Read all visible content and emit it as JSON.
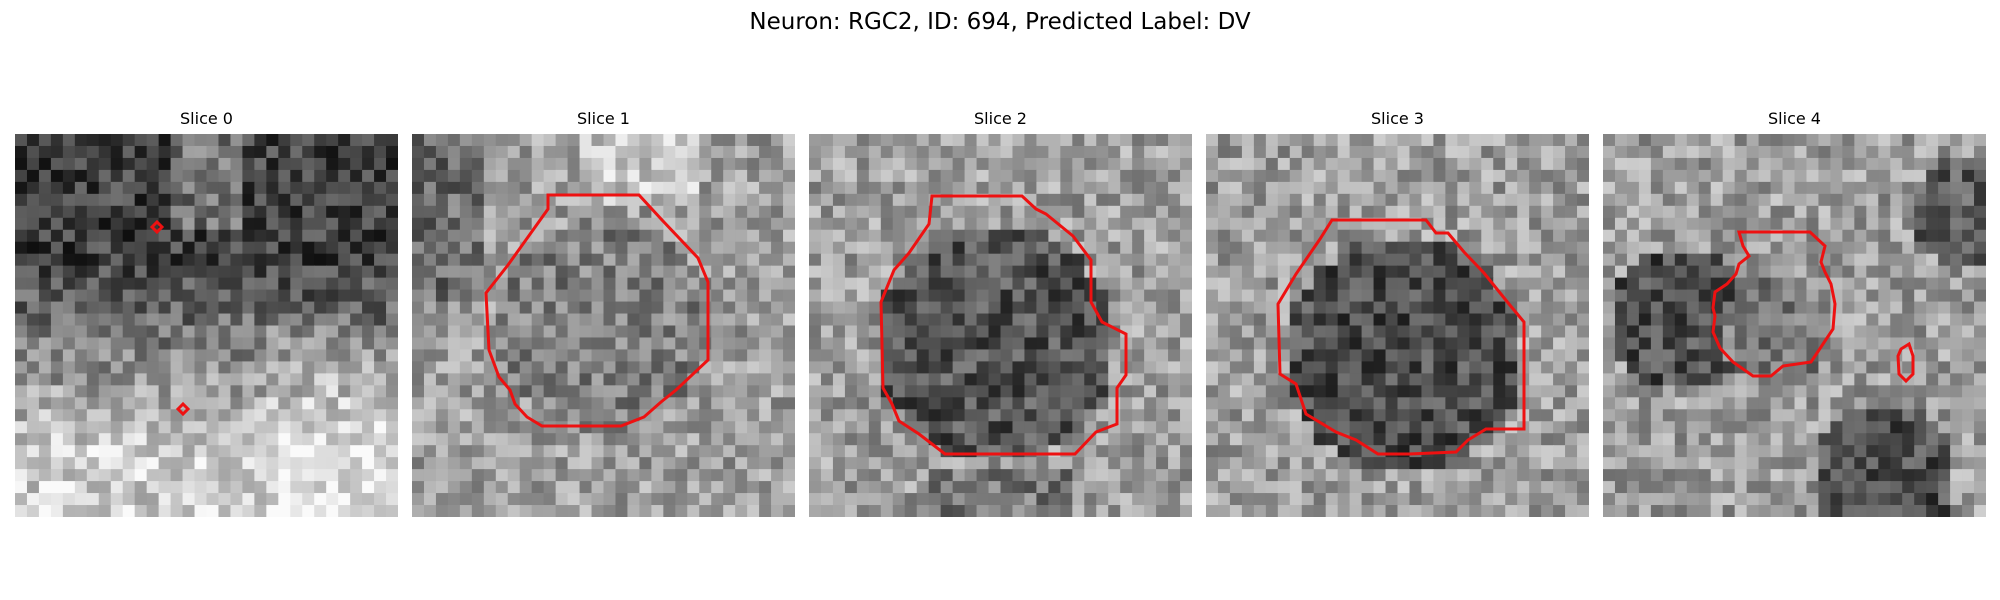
{
  "figure": {
    "title": "Neuron: RGC2, ID: 694, Predicted Label: DV"
  },
  "panels": [
    {
      "title": "Slice 0"
    },
    {
      "title": "Slice 1"
    },
    {
      "title": "Slice 2"
    },
    {
      "title": "Slice 3"
    },
    {
      "title": "Slice 4"
    }
  ],
  "colors": {
    "roi_outline": "#ee1111",
    "colormap": "grayscale"
  }
}
